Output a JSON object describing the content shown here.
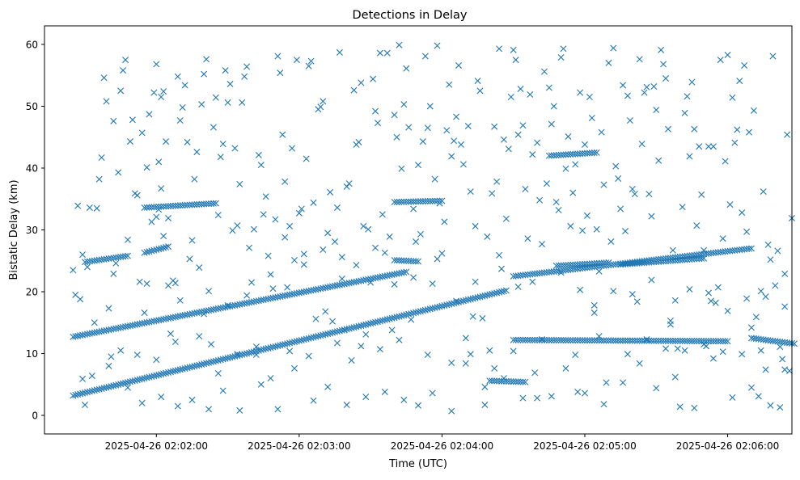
{
  "chart_data": {
    "type": "scatter",
    "title": "Detections in Delay",
    "xlabel": "Time (UTC)",
    "ylabel": "Bistatic Delay (km)",
    "x_range_seconds": [
      -47,
      267
    ],
    "ylim": [
      -3,
      63
    ],
    "x_ticks": [
      {
        "t": 0,
        "label": "2025-04-26 02:02:00"
      },
      {
        "t": 60,
        "label": "2025-04-26 02:03:00"
      },
      {
        "t": 120,
        "label": "2025-04-26 02:04:00"
      },
      {
        "t": 180,
        "label": "2025-04-26 02:05:00"
      },
      {
        "t": 240,
        "label": "2025-04-26 02:06:00"
      }
    ],
    "y_ticks": [
      0,
      10,
      20,
      30,
      40,
      50,
      60
    ],
    "grid": false,
    "marker": "x",
    "color": "#1f77b4",
    "tracks": [
      {
        "t_start": -35,
        "t_end": 105,
        "y_start": 12.7,
        "y_end": 23.2
      },
      {
        "t_start": -35,
        "t_end": 147,
        "y_start": 3.2,
        "y_end": 20.2
      },
      {
        "t_start": 150,
        "t_end": 250,
        "y_start": 22.5,
        "y_end": 27.0
      },
      {
        "t_start": 250,
        "t_end": 268,
        "y_start": 12.5,
        "y_end": 11.6
      },
      {
        "t_start": -30,
        "t_end": -12,
        "y_start": 24.8,
        "y_end": 25.8
      },
      {
        "t_start": -5,
        "t_end": 5,
        "y_start": 26.3,
        "y_end": 27.3
      },
      {
        "t_start": -5,
        "t_end": 25,
        "y_start": 33.6,
        "y_end": 34.3
      },
      {
        "t_start": 168,
        "t_end": 190,
        "y_start": 24.2,
        "y_end": 24.7
      },
      {
        "t_start": 195,
        "t_end": 230,
        "y_start": 24.4,
        "y_end": 25.4
      },
      {
        "t_start": 150,
        "t_end": 240,
        "y_start": 12.2,
        "y_end": 12.0
      },
      {
        "t_start": 100,
        "t_end": 110,
        "y_start": 25.1,
        "y_end": 24.9
      },
      {
        "t_start": 100,
        "t_end": 120,
        "y_start": 34.5,
        "y_end": 34.7
      },
      {
        "t_start": 140,
        "t_end": 155,
        "y_start": 5.6,
        "y_end": 5.4
      },
      {
        "t_start": 165,
        "t_end": 185,
        "y_start": 42,
        "y_end": 42.5
      }
    ],
    "points": [
      [
        -35,
        23.5
      ],
      [
        -34,
        19.5
      ],
      [
        -33,
        33.9
      ],
      [
        -32,
        18.8
      ],
      [
        -31,
        26
      ],
      [
        -31,
        5.9
      ],
      [
        -30,
        1.7
      ],
      [
        -29,
        24
      ],
      [
        -28,
        33.6
      ],
      [
        -27,
        6.4
      ],
      [
        -26,
        15
      ],
      [
        -25,
        33.5
      ],
      [
        -24,
        38.2
      ],
      [
        -23,
        41.7
      ],
      [
        -22,
        54.6
      ],
      [
        -21,
        50.8
      ],
      [
        -20,
        17.3
      ],
      [
        -19,
        9.5
      ],
      [
        -18,
        47.6
      ],
      [
        -17,
        24.6
      ],
      [
        -16,
        39.3
      ],
      [
        -15,
        52.5
      ],
      [
        -14,
        55.8
      ],
      [
        -13,
        57.5
      ],
      [
        -12,
        28.4
      ],
      [
        -11,
        44.3
      ],
      [
        -10,
        47.8
      ],
      [
        -9,
        35.9
      ],
      [
        -8,
        35.6
      ],
      [
        -7,
        21.6
      ],
      [
        -6,
        45.7
      ],
      [
        -5,
        16.6
      ],
      [
        -4,
        40.1
      ],
      [
        -3,
        48.7
      ],
      [
        -2,
        31.3
      ],
      [
        -1,
        52.2
      ],
      [
        0,
        32.1
      ],
      [
        0,
        56.8
      ],
      [
        1,
        33.3
      ],
      [
        1,
        41
      ],
      [
        2,
        36.7
      ],
      [
        2,
        51.5
      ],
      [
        3,
        29
      ],
      [
        3,
        52.4
      ],
      [
        4,
        44.3
      ],
      [
        5,
        31.9
      ],
      [
        5,
        21
      ],
      [
        6,
        13.2
      ],
      [
        7,
        21.8
      ],
      [
        8,
        21.4
      ],
      [
        9,
        54.8
      ],
      [
        10,
        47.7
      ],
      [
        11,
        49.8
      ],
      [
        12,
        53.4
      ],
      [
        13,
        44.2
      ],
      [
        14,
        25.3
      ],
      [
        15,
        28.3
      ],
      [
        16,
        38.2
      ],
      [
        17,
        42.6
      ],
      [
        18,
        23.9
      ],
      [
        19,
        50.3
      ],
      [
        20,
        55.2
      ],
      [
        21,
        57.6
      ],
      [
        22,
        20.1
      ],
      [
        23,
        11.5
      ],
      [
        24,
        46.6
      ],
      [
        25,
        51.4
      ],
      [
        26,
        32.4
      ],
      [
        27,
        41.8
      ],
      [
        28,
        43.9
      ],
      [
        29,
        55.8
      ],
      [
        30,
        50.6
      ],
      [
        31,
        53.6
      ],
      [
        32,
        29.9
      ],
      [
        33,
        43.2
      ],
      [
        34,
        30.7
      ],
      [
        35,
        37.4
      ],
      [
        36,
        50.6
      ],
      [
        37,
        54.8
      ],
      [
        38,
        56.4
      ],
      [
        39,
        27.1
      ],
      [
        40,
        21.5
      ],
      [
        41,
        30.1
      ],
      [
        42,
        9.8
      ],
      [
        43,
        42.1
      ],
      [
        44,
        40.5
      ],
      [
        45,
        32.5
      ],
      [
        46,
        35.4
      ],
      [
        47,
        25.8
      ],
      [
        48,
        6
      ],
      [
        49,
        20.5
      ],
      [
        50,
        31.7
      ],
      [
        51,
        58.1
      ],
      [
        52,
        55.4
      ],
      [
        53,
        45.4
      ],
      [
        54,
        37.8
      ],
      [
        55,
        20.7
      ],
      [
        56,
        30.6
      ],
      [
        57,
        43.2
      ],
      [
        58,
        25.1
      ],
      [
        59,
        57.5
      ],
      [
        60,
        32.7
      ],
      [
        61,
        33.4
      ],
      [
        62,
        26.1
      ],
      [
        63,
        41.5
      ],
      [
        64,
        56.5
      ],
      [
        65,
        57.3
      ],
      [
        66,
        34.4
      ],
      [
        67,
        15.6
      ],
      [
        68,
        49.5
      ],
      [
        69,
        49.9
      ],
      [
        70,
        50.8
      ],
      [
        71,
        16.8
      ],
      [
        72,
        29.5
      ],
      [
        73,
        36.1
      ],
      [
        74,
        15.2
      ],
      [
        75,
        28.1
      ],
      [
        76,
        33.6
      ],
      [
        77,
        58.7
      ],
      [
        78,
        25.6
      ],
      [
        79,
        13.8
      ],
      [
        80,
        37
      ],
      [
        81,
        37.5
      ],
      [
        82,
        8.9
      ],
      [
        83,
        52.6
      ],
      [
        84,
        43.8
      ],
      [
        85,
        44.2
      ],
      [
        86,
        53.8
      ],
      [
        87,
        30.6
      ],
      [
        88,
        13.1
      ],
      [
        89,
        30.1
      ],
      [
        90,
        21.5
      ],
      [
        91,
        54.4
      ],
      [
        92,
        49.2
      ],
      [
        93,
        47.3
      ],
      [
        94,
        58.6
      ],
      [
        95,
        32.5
      ],
      [
        96,
        26.3
      ],
      [
        97,
        58.6
      ],
      [
        98,
        28.9
      ],
      [
        99,
        13.8
      ],
      [
        100,
        48.6
      ],
      [
        101,
        45
      ],
      [
        102,
        59.9
      ],
      [
        103,
        39.9
      ],
      [
        104,
        50.3
      ],
      [
        105,
        56.1
      ],
      [
        106,
        46.6
      ],
      [
        107,
        15.5
      ],
      [
        108,
        33.4
      ],
      [
        109,
        28.1
      ],
      [
        110,
        40.5
      ],
      [
        111,
        29.3
      ],
      [
        112,
        44.3
      ],
      [
        113,
        58.1
      ],
      [
        114,
        46.5
      ],
      [
        115,
        50
      ],
      [
        116,
        21.3
      ],
      [
        117,
        38.2
      ],
      [
        118,
        59.8
      ],
      [
        119,
        34.3
      ],
      [
        120,
        26.2
      ],
      [
        121,
        31.3
      ],
      [
        122,
        46.1
      ],
      [
        123,
        53.5
      ],
      [
        124,
        41.9
      ],
      [
        125,
        44.4
      ],
      [
        126,
        48.3
      ],
      [
        127,
        56.6
      ],
      [
        128,
        43.8
      ],
      [
        129,
        40.6
      ],
      [
        130,
        12.5
      ],
      [
        131,
        46.8
      ],
      [
        132,
        36.2
      ],
      [
        133,
        16
      ],
      [
        134,
        30.6
      ],
      [
        135,
        54.1
      ],
      [
        136,
        52.5
      ],
      [
        137,
        15.7
      ],
      [
        138,
        1.7
      ],
      [
        139,
        28.9
      ],
      [
        140,
        10.5
      ],
      [
        141,
        35.9
      ],
      [
        142,
        46.7
      ],
      [
        143,
        37.8
      ],
      [
        144,
        59.3
      ],
      [
        145,
        23.7
      ],
      [
        146,
        44.6
      ],
      [
        147,
        31.8
      ],
      [
        148,
        43.1
      ],
      [
        149,
        51.5
      ],
      [
        150,
        59.1
      ],
      [
        151,
        57.5
      ],
      [
        152,
        45.4
      ],
      [
        153,
        52.8
      ],
      [
        154,
        46.9
      ],
      [
        155,
        36.6
      ],
      [
        156,
        28.6
      ],
      [
        157,
        51.9
      ],
      [
        158,
        42.2
      ],
      [
        159,
        6.9
      ],
      [
        160,
        44.1
      ],
      [
        161,
        34.8
      ],
      [
        162,
        27.7
      ],
      [
        163,
        55.6
      ],
      [
        164,
        37.5
      ],
      [
        165,
        53
      ],
      [
        166,
        47.1
      ],
      [
        167,
        50
      ],
      [
        168,
        34.5
      ],
      [
        169,
        33.2
      ],
      [
        170,
        57.9
      ],
      [
        171,
        59.3
      ],
      [
        172,
        39.9
      ],
      [
        173,
        45.1
      ],
      [
        174,
        30.6
      ],
      [
        175,
        36
      ],
      [
        176,
        40.6
      ],
      [
        177,
        3.8
      ],
      [
        178,
        52.2
      ],
      [
        179,
        29.9
      ],
      [
        180,
        43.8
      ],
      [
        181,
        32.3
      ],
      [
        182,
        51.5
      ],
      [
        183,
        48.1
      ],
      [
        184,
        16.6
      ],
      [
        185,
        30.1
      ],
      [
        186,
        23.3
      ],
      [
        187,
        45.8
      ],
      [
        188,
        37.3
      ],
      [
        189,
        5.3
      ],
      [
        190,
        57
      ],
      [
        191,
        28.1
      ],
      [
        192,
        59.4
      ],
      [
        193,
        40.3
      ],
      [
        194,
        38.3
      ],
      [
        195,
        33.4
      ],
      [
        196,
        53.4
      ],
      [
        197,
        29.8
      ],
      [
        198,
        51.7
      ],
      [
        199,
        47.7
      ],
      [
        200,
        36.6
      ],
      [
        201,
        35.8
      ],
      [
        202,
        18.4
      ],
      [
        203,
        57.6
      ],
      [
        204,
        43.9
      ],
      [
        205,
        52.2
      ],
      [
        206,
        53.1
      ],
      [
        207,
        35.8
      ],
      [
        208,
        32.2
      ],
      [
        209,
        53.2
      ],
      [
        210,
        49.4
      ],
      [
        211,
        41.2
      ],
      [
        212,
        59.1
      ],
      [
        213,
        56.8
      ],
      [
        214,
        54.5
      ],
      [
        215,
        46.3
      ],
      [
        216,
        14.7
      ],
      [
        217,
        26.7
      ],
      [
        218,
        18.6
      ],
      [
        219,
        10.8
      ],
      [
        220,
        1.4
      ],
      [
        221,
        33.7
      ],
      [
        222,
        48.9
      ],
      [
        223,
        51.6
      ],
      [
        224,
        41.9
      ],
      [
        225,
        53.9
      ],
      [
        226,
        46.3
      ],
      [
        227,
        30.7
      ],
      [
        228,
        43.5
      ],
      [
        229,
        35.7
      ],
      [
        230,
        26.7
      ],
      [
        231,
        11.2
      ],
      [
        232,
        43.5
      ],
      [
        233,
        18.5
      ],
      [
        234,
        43.5
      ],
      [
        235,
        18.2
      ],
      [
        236,
        20.7
      ],
      [
        237,
        57.5
      ],
      [
        238,
        28.6
      ],
      [
        239,
        41.1
      ],
      [
        240,
        58.3
      ],
      [
        241,
        34.1
      ],
      [
        242,
        51.4
      ],
      [
        243,
        44.1
      ],
      [
        244,
        46.2
      ],
      [
        245,
        54.1
      ],
      [
        246,
        32.8
      ],
      [
        247,
        56.6
      ],
      [
        248,
        29.7
      ],
      [
        249,
        45.8
      ],
      [
        250,
        14.2
      ],
      [
        251,
        49.3
      ],
      [
        252,
        15.9
      ],
      [
        253,
        3.1
      ],
      [
        254,
        20.1
      ],
      [
        255,
        36.2
      ],
      [
        256,
        7.4
      ],
      [
        257,
        27.6
      ],
      [
        258,
        25.2
      ],
      [
        259,
        58.1
      ],
      [
        260,
        21
      ],
      [
        261,
        26.6
      ],
      [
        262,
        1.3
      ],
      [
        263,
        9.1
      ],
      [
        264,
        22.9
      ],
      [
        265,
        45.4
      ],
      [
        266,
        7.2
      ],
      [
        267,
        31.9
      ],
      [
        -20,
        8
      ],
      [
        -12,
        4.5
      ],
      [
        -6,
        2
      ],
      [
        2,
        3
      ],
      [
        9,
        1.5
      ],
      [
        15,
        2.5
      ],
      [
        22,
        1
      ],
      [
        28,
        4
      ],
      [
        35,
        0.8
      ],
      [
        44,
        5
      ],
      [
        51,
        1
      ],
      [
        58,
        7.6
      ],
      [
        66,
        2.4
      ],
      [
        72,
        4.6
      ],
      [
        80,
        1.7
      ],
      [
        88,
        3
      ],
      [
        96,
        3.8
      ],
      [
        104,
        2.5
      ],
      [
        110,
        1.6
      ],
      [
        116,
        3.6
      ],
      [
        124,
        0.7
      ],
      [
        130,
        8.4
      ],
      [
        138,
        4.6
      ],
      [
        146,
        6
      ],
      [
        154,
        2.8
      ],
      [
        160,
        2.8
      ],
      [
        166,
        3.1
      ],
      [
        172,
        7.6
      ],
      [
        180,
        3.6
      ],
      [
        188,
        1.8
      ],
      [
        196,
        5.3
      ],
      [
        203,
        8.4
      ],
      [
        210,
        4.4
      ],
      [
        218,
        6.2
      ],
      [
        226,
        1.2
      ],
      [
        234,
        9.2
      ],
      [
        242,
        2.9
      ],
      [
        250,
        4.5
      ],
      [
        258,
        1.6
      ],
      [
        264,
        7.4
      ],
      [
        -15,
        10.5
      ],
      [
        -8,
        9.8
      ],
      [
        0,
        9
      ],
      [
        8,
        11.9
      ],
      [
        18,
        12.8
      ],
      [
        26,
        6.8
      ],
      [
        34,
        9.9
      ],
      [
        42,
        11.1
      ],
      [
        56,
        10.4
      ],
      [
        64,
        9.6
      ],
      [
        76,
        11.7
      ],
      [
        86,
        11.2
      ],
      [
        94,
        10.7
      ],
      [
        102,
        12.2
      ],
      [
        114,
        9.8
      ],
      [
        124,
        8.5
      ],
      [
        132,
        9.9
      ],
      [
        142,
        7.6
      ],
      [
        150,
        10.4
      ],
      [
        162,
        12.3
      ],
      [
        176,
        9.8
      ],
      [
        186,
        12.8
      ],
      [
        198,
        9.9
      ],
      [
        206,
        12.3
      ],
      [
        214,
        10.8
      ],
      [
        222,
        10.5
      ],
      [
        230,
        11.5
      ],
      [
        238,
        10.3
      ],
      [
        246,
        9.9
      ],
      [
        254,
        10.5
      ],
      [
        262,
        11.1
      ],
      [
        -18,
        22.9
      ],
      [
        -4,
        21.3
      ],
      [
        10,
        18.6
      ],
      [
        20,
        16.4
      ],
      [
        30,
        17.8
      ],
      [
        38,
        19.4
      ],
      [
        48,
        22.8
      ],
      [
        54,
        28.8
      ],
      [
        62,
        24.4
      ],
      [
        70,
        26.8
      ],
      [
        78,
        22.1
      ],
      [
        84,
        24.3
      ],
      [
        92,
        27.1
      ],
      [
        100,
        21.2
      ],
      [
        108,
        22.3
      ],
      [
        118,
        25.3
      ],
      [
        126,
        18.5
      ],
      [
        134,
        21.6
      ],
      [
        144,
        25.9
      ],
      [
        152,
        20.8
      ],
      [
        158,
        21.6
      ],
      [
        170,
        23.1
      ],
      [
        178,
        20.3
      ],
      [
        184,
        17.8
      ],
      [
        192,
        20.1
      ],
      [
        200,
        19.6
      ],
      [
        208,
        21.9
      ],
      [
        216,
        15.3
      ],
      [
        224,
        20.4
      ],
      [
        232,
        19.8
      ],
      [
        240,
        16.9
      ],
      [
        248,
        18.9
      ],
      [
        256,
        19.2
      ],
      [
        264,
        17.6
      ]
    ]
  }
}
